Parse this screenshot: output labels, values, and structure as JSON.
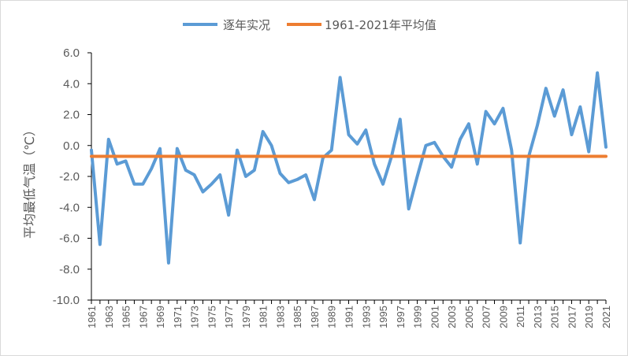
{
  "chart_data": {
    "type": "line",
    "ylabel": "平均最低气温（℃）",
    "ylim": [
      -10,
      6
    ],
    "yticks": [
      "6.0",
      "4.0",
      "2.0",
      "0.0",
      "-2.0",
      "-4.0",
      "-6.0",
      "-8.0",
      "-10.0"
    ],
    "ytick_values": [
      6,
      4,
      2,
      0,
      -2,
      -4,
      -6,
      -8,
      -10
    ],
    "x": [
      1961,
      1962,
      1963,
      1964,
      1965,
      1966,
      1967,
      1968,
      1969,
      1970,
      1971,
      1972,
      1973,
      1974,
      1975,
      1976,
      1977,
      1978,
      1979,
      1980,
      1981,
      1982,
      1983,
      1984,
      1985,
      1986,
      1987,
      1988,
      1989,
      1990,
      1991,
      1992,
      1993,
      1994,
      1995,
      1996,
      1997,
      1998,
      1999,
      2000,
      2001,
      2002,
      2003,
      2004,
      2005,
      2006,
      2007,
      2008,
      2009,
      2010,
      2011,
      2012,
      2013,
      2014,
      2015,
      2016,
      2017,
      2018,
      2019,
      2020,
      2021
    ],
    "xticks": [
      "1961",
      "1963",
      "1965",
      "1967",
      "1969",
      "1971",
      "1973",
      "1975",
      "1977",
      "1979",
      "1981",
      "1983",
      "1985",
      "1987",
      "1989",
      "1991",
      "1993",
      "1995",
      "1997",
      "1999",
      "2001",
      "2003",
      "2005",
      "2007",
      "2009",
      "2011",
      "2013",
      "2015",
      "2017",
      "2019",
      "2021"
    ],
    "series": [
      {
        "name": "逐年实况",
        "color": "#5b9bd5",
        "values": [
          -0.3,
          -6.4,
          0.4,
          -1.2,
          -1.0,
          -2.5,
          -2.5,
          -1.5,
          -0.2,
          -7.6,
          -0.2,
          -1.6,
          -1.9,
          -3.0,
          -2.5,
          -1.9,
          -4.5,
          -0.3,
          -2.0,
          -1.6,
          0.9,
          0.0,
          -1.8,
          -2.4,
          -2.2,
          -1.9,
          -3.5,
          -0.8,
          -0.3,
          4.4,
          0.7,
          0.1,
          1.0,
          -1.2,
          -2.5,
          -0.7,
          1.7,
          -4.1,
          -2.0,
          0.0,
          0.2,
          -0.7,
          -1.4,
          0.4,
          1.4,
          -1.2,
          2.2,
          1.4,
          2.4,
          -0.3,
          -6.3,
          -0.7,
          1.3,
          3.7,
          1.9,
          3.6,
          0.7,
          2.5,
          -0.4,
          4.7,
          -0.1
        ]
      },
      {
        "name": "1961-2021年平均值",
        "color": "#ed7d31",
        "values": [
          -0.7,
          -0.7,
          -0.7,
          -0.7,
          -0.7,
          -0.7,
          -0.7,
          -0.7,
          -0.7,
          -0.7,
          -0.7,
          -0.7,
          -0.7,
          -0.7,
          -0.7,
          -0.7,
          -0.7,
          -0.7,
          -0.7,
          -0.7,
          -0.7,
          -0.7,
          -0.7,
          -0.7,
          -0.7,
          -0.7,
          -0.7,
          -0.7,
          -0.7,
          -0.7,
          -0.7,
          -0.7,
          -0.7,
          -0.7,
          -0.7,
          -0.7,
          -0.7,
          -0.7,
          -0.7,
          -0.7,
          -0.7,
          -0.7,
          -0.7,
          -0.7,
          -0.7,
          -0.7,
          -0.7,
          -0.7,
          -0.7,
          -0.7,
          -0.7,
          -0.7,
          -0.7,
          -0.7,
          -0.7,
          -0.7,
          -0.7,
          -0.7,
          -0.7,
          -0.7,
          -0.7
        ]
      }
    ],
    "grid": false,
    "legend": "top-center"
  }
}
